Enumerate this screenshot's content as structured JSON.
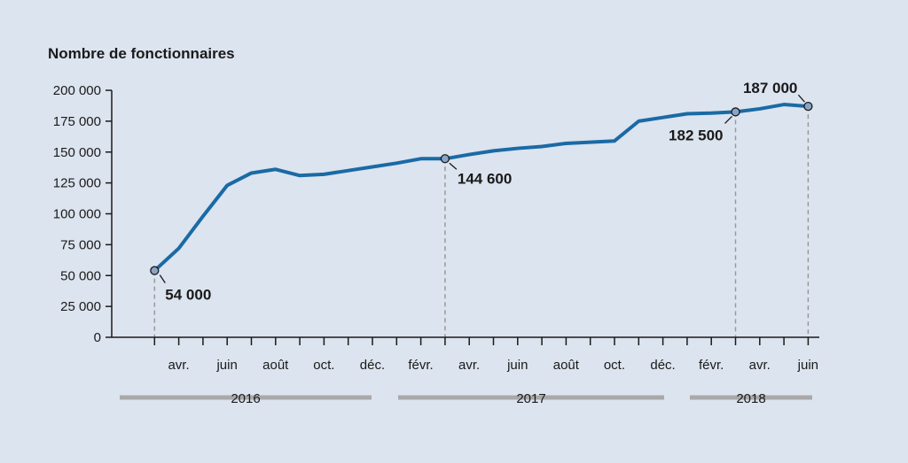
{
  "chart_data": {
    "type": "line",
    "title": "Nombre de fonctionnaires",
    "ylim": [
      0,
      200000
    ],
    "yticks": [
      "200 000",
      "175 000",
      "150 000",
      "125 000",
      "100 000",
      "75 000",
      "50 000",
      "25 000",
      "0"
    ],
    "ytick_values": [
      200000,
      175000,
      150000,
      125000,
      100000,
      75000,
      50000,
      25000,
      0
    ],
    "xtick_labels": [
      {
        "label": "avr.",
        "month": 2
      },
      {
        "label": "juin",
        "month": 4
      },
      {
        "label": "août",
        "month": 6
      },
      {
        "label": "oct.",
        "month": 8
      },
      {
        "label": "déc.",
        "month": 10
      },
      {
        "label": "févr.",
        "month": 12
      },
      {
        "label": "avr.",
        "month": 14
      },
      {
        "label": "juin",
        "month": 16
      },
      {
        "label": "août",
        "month": 18
      },
      {
        "label": "oct.",
        "month": 20
      },
      {
        "label": "déc.",
        "month": 22
      },
      {
        "label": "févr.",
        "month": 24
      },
      {
        "label": "avr.",
        "month": 26
      },
      {
        "label": "juin",
        "month": 28
      }
    ],
    "years": [
      {
        "label": "2016",
        "from": 0,
        "to": 11
      },
      {
        "label": "2017",
        "from": 12,
        "to": 23
      },
      {
        "label": "2018",
        "from": 24,
        "to": 29
      }
    ],
    "series": [
      {
        "x": [
          "2016-03",
          "2016-04",
          "2016-05",
          "2016-06",
          "2016-07",
          "2016-08",
          "2016-09",
          "2016-10",
          "2016-11",
          "2016-12",
          "2017-01",
          "2017-02",
          "2017-03",
          "2017-04",
          "2017-05",
          "2017-06",
          "2017-07",
          "2017-08",
          "2017-09",
          "2017-10",
          "2017-11",
          "2017-12",
          "2018-01",
          "2018-02",
          "2018-03",
          "2018-04",
          "2018-05",
          "2018-06"
        ],
        "values": [
          54000,
          72000,
          98000,
          123000,
          133000,
          136000,
          131000,
          132000,
          135000,
          138000,
          141000,
          144600,
          144600,
          148000,
          151000,
          153000,
          154500,
          157000,
          158000,
          159000,
          175000,
          178000,
          181000,
          181500,
          182500,
          185000,
          188500,
          187000
        ]
      }
    ],
    "annotations": [
      {
        "label": "54 000",
        "month": 1,
        "value": 54000
      },
      {
        "label": "144 600",
        "month": 13,
        "value": 144600
      },
      {
        "label": "182 500",
        "month": 25,
        "value": 182500
      },
      {
        "label": "187 000",
        "month": 28,
        "value": 187000
      }
    ],
    "line_color": "#1a6aa5",
    "marker_color": "#8aa4c4",
    "axis_color": "#1a1a1a",
    "guide_color": "#9a9a9a",
    "year_bar_color": "#a9a9a9"
  }
}
